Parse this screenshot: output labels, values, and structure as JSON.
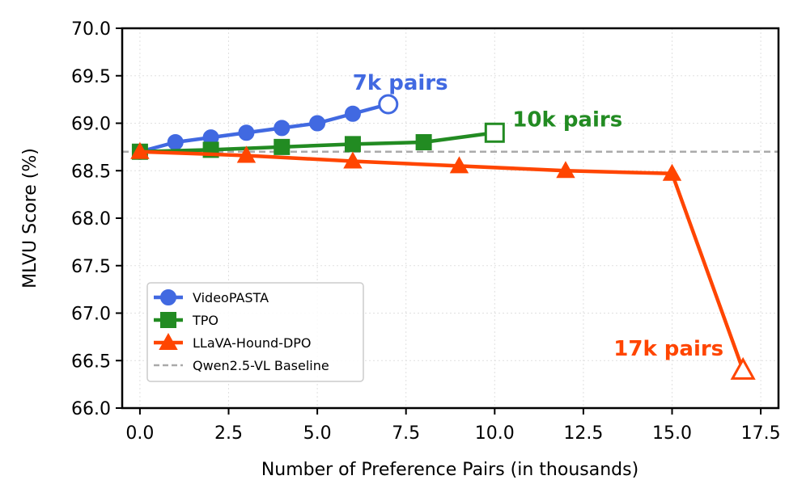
{
  "chart_data": {
    "type": "line",
    "title": "",
    "xlabel": "Number of Preference Pairs (in thousands)",
    "ylabel": "MLVU Score (%)",
    "xlim": [
      -0.5,
      18.0
    ],
    "ylim": [
      66.0,
      70.0
    ],
    "x_ticks": [
      0.0,
      2.5,
      5.0,
      7.5,
      10.0,
      12.5,
      15.0,
      17.5
    ],
    "x_tick_labels": [
      "0.0",
      "2.5",
      "5.0",
      "7.5",
      "10.0",
      "12.5",
      "15.0",
      "17.5"
    ],
    "y_ticks": [
      66.0,
      66.5,
      67.0,
      67.5,
      68.0,
      68.5,
      69.0,
      69.5,
      70.0
    ],
    "y_tick_labels": [
      "66.0",
      "66.5",
      "67.0",
      "67.5",
      "68.0",
      "68.5",
      "69.0",
      "69.5",
      "70.0"
    ],
    "grid": true,
    "legend_position": "lower-left",
    "series": [
      {
        "name": "VideoPASTA",
        "color": "#4169e1",
        "marker": "circle",
        "x": [
          0,
          1,
          2,
          3,
          4,
          5,
          6,
          7
        ],
        "y": [
          68.7,
          68.8,
          68.85,
          68.9,
          68.95,
          69.0,
          69.1,
          69.2
        ],
        "end_annotation": "7k pairs"
      },
      {
        "name": "TPO",
        "color": "#228b22",
        "marker": "square",
        "x": [
          0,
          2,
          4,
          6,
          8,
          10
        ],
        "y": [
          68.7,
          68.72,
          68.75,
          68.78,
          68.8,
          68.9
        ],
        "end_annotation": "10k pairs"
      },
      {
        "name": "LLaVA-Hound-DPO",
        "color": "#ff4500",
        "marker": "triangle",
        "x": [
          0,
          3,
          6,
          9,
          12,
          15,
          17
        ],
        "y": [
          68.7,
          68.66,
          68.6,
          68.55,
          68.5,
          68.47,
          66.4
        ],
        "end_annotation": "17k pairs"
      }
    ],
    "baseline": {
      "name": "Qwen2.5-VL Baseline",
      "value": 68.7,
      "color": "#aaaaaa"
    }
  }
}
